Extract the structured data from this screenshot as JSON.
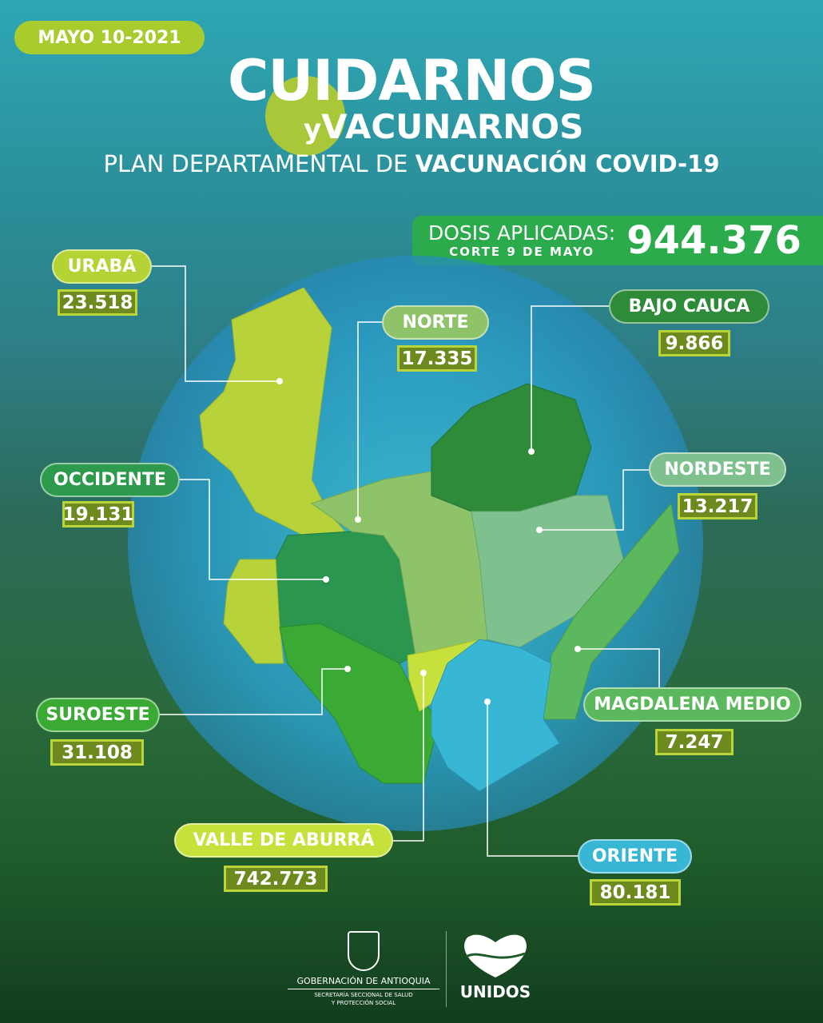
{
  "date": "MAYO 10-2021",
  "title": {
    "line1": "CUIDARNOS",
    "y": "y",
    "line2": "VACUNARNOS",
    "subtitle_regular": "PLAN DEPARTAMENTAL DE ",
    "subtitle_bold": "VACUNACIÓN COVID-19"
  },
  "dosis": {
    "label": "DOSIS APLICADAS:",
    "cutoff": "CORTE 9 DE MAYO",
    "total": "944.376",
    "color": "#2bab4c"
  },
  "regions": [
    {
      "name": "URABÁ",
      "value": "23.518",
      "color": "#b5d334"
    },
    {
      "name": "NORTE",
      "value": "17.335",
      "color": "#8ec36a"
    },
    {
      "name": "BAJO CAUCA",
      "value": "9.866",
      "color": "#2e8b3a"
    },
    {
      "name": "OCCIDENTE",
      "value": "19.131",
      "color": "#2e9a4e"
    },
    {
      "name": "NORDESTE",
      "value": "13.217",
      "color": "#7ec08e"
    },
    {
      "name": "SUROESTE",
      "value": "31.108",
      "color": "#3aaa35"
    },
    {
      "name": "MAGDALENA MEDIO",
      "value": "7.247",
      "color": "#5cb85c"
    },
    {
      "name": "VALLE  DE ABURRÁ",
      "value": "742.773",
      "color": "#c6e03c"
    },
    {
      "name": "ORIENTE",
      "value": "80.181",
      "color": "#38b7d5"
    }
  ],
  "footer": {
    "gov": "GOBERNACIÓN DE ANTIOQUIA",
    "sec1": "SECRETARÍA SECCIONAL DE SALUD",
    "sec2": "Y PROTECCIÓN SOCIAL",
    "brand": "UNIDOS"
  }
}
